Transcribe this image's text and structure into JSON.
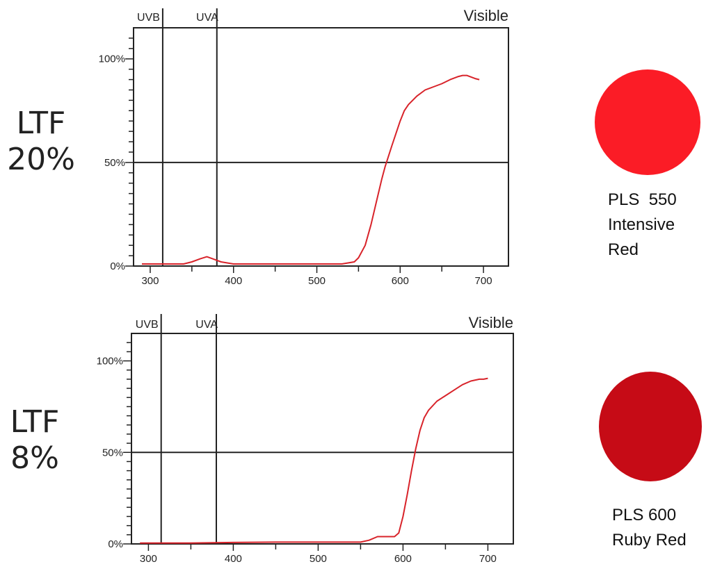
{
  "panels": [
    {
      "ltf_label": "LTF",
      "ltf_value": "20%",
      "film_code": "PLS  550",
      "film_name_1": "Intensive",
      "film_name_2": "Red",
      "swatch_color": "#fb1c26"
    },
    {
      "ltf_label": "LTF",
      "ltf_value": "8%",
      "film_code": "PLS 600",
      "film_name_1": "Ruby Red",
      "film_name_2": "",
      "swatch_color": "#c60b16"
    }
  ],
  "chart_data": [
    {
      "type": "line",
      "title": "",
      "xlabel": "",
      "ylabel": "",
      "xlim": [
        280,
        730
      ],
      "ylim": [
        0,
        115
      ],
      "grid": false,
      "band_labels": {
        "uvb": "UVB",
        "uva": "UVA",
        "visible": "Visible"
      },
      "band_boundaries": [
        315,
        380
      ],
      "reference_line_y": 50,
      "x_ticks": [
        300,
        400,
        500,
        600,
        700
      ],
      "x_tick_labels": [
        "300",
        "400",
        "500",
        "600",
        "700"
      ],
      "y_ticks": [
        0,
        50,
        100
      ],
      "y_tick_labels": [
        "0%",
        "50%",
        "100%"
      ],
      "line_color": "#d8232a",
      "series": [
        {
          "x": [
            290,
            300,
            320,
            340,
            350,
            360,
            368,
            375,
            385,
            400,
            450,
            500,
            530,
            545,
            550,
            558,
            565,
            572,
            578,
            582,
            586,
            590,
            595,
            600,
            605,
            610,
            620,
            630,
            640,
            650,
            660,
            670,
            675,
            680,
            690,
            695
          ],
          "y": [
            1,
            1,
            1,
            1,
            2,
            3.5,
            4.5,
            3.5,
            2,
            1,
            1,
            1,
            1,
            2,
            4,
            10,
            20,
            32,
            42,
            48,
            53,
            58,
            64,
            70,
            75,
            78,
            82,
            85,
            86.5,
            88,
            90,
            91.5,
            92,
            92,
            90.5,
            90
          ]
        }
      ]
    },
    {
      "type": "line",
      "title": "",
      "xlabel": "",
      "ylabel": "",
      "xlim": [
        280,
        730
      ],
      "ylim": [
        0,
        115
      ],
      "grid": false,
      "band_labels": {
        "uvb": "UVB",
        "uva": "UVA",
        "visible": "Visible"
      },
      "band_boundaries": [
        315,
        380
      ],
      "reference_line_y": 50,
      "x_ticks": [
        300,
        400,
        500,
        600,
        700
      ],
      "x_tick_labels": [
        "300",
        "400",
        "500",
        "600",
        "700"
      ],
      "y_ticks": [
        0,
        50,
        100
      ],
      "y_tick_labels": [
        "0%",
        "50%",
        "100%"
      ],
      "line_color": "#d8232a",
      "series": [
        {
          "x": [
            290,
            300,
            350,
            400,
            450,
            500,
            550,
            560,
            570,
            580,
            590,
            595,
            600,
            605,
            610,
            615,
            620,
            625,
            630,
            640,
            650,
            660,
            670,
            680,
            690,
            695,
            700
          ],
          "y": [
            0.5,
            0.5,
            0.5,
            0.8,
            1,
            1,
            1,
            2,
            4,
            4,
            4,
            6,
            15,
            27,
            40,
            52,
            62,
            69,
            73,
            78,
            81,
            84,
            87,
            89,
            90,
            90,
            90.5
          ]
        }
      ]
    }
  ]
}
